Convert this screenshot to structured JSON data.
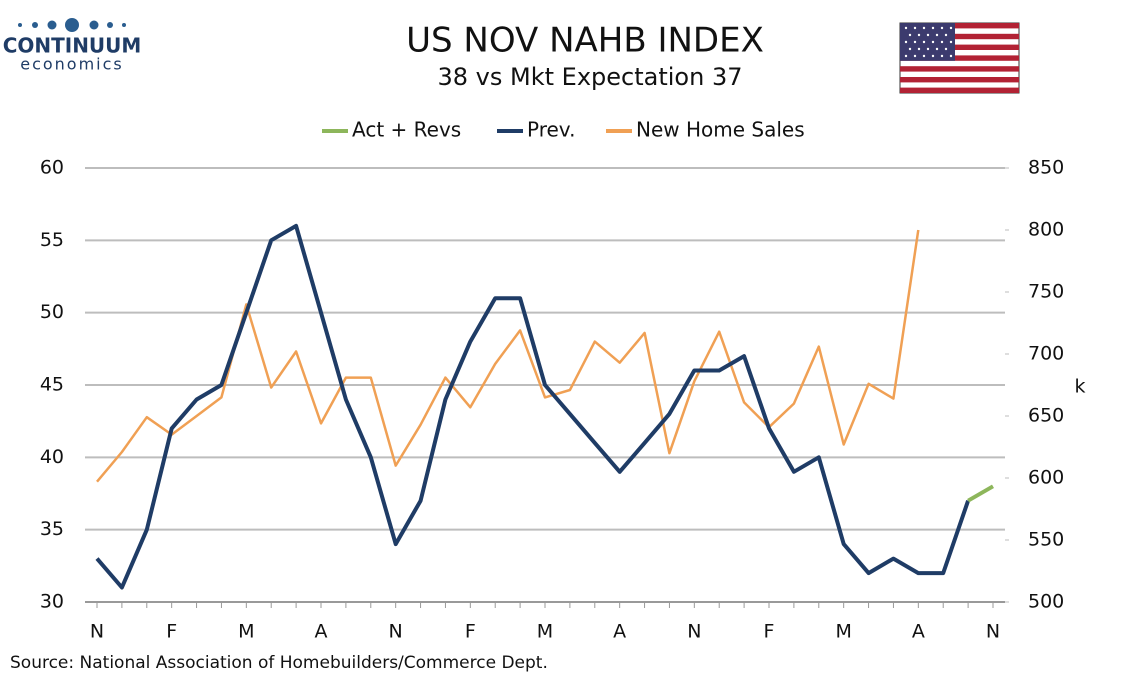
{
  "logo": {
    "name": "CONTINUUM",
    "tagline": "economics"
  },
  "chart_data": {
    "type": "line",
    "title": "US NOV NAHB INDEX",
    "subtitle": "38 vs Mkt Expectation 37",
    "y2_label": "k",
    "source": "Source: National Association of Homebuilders/Commerce Dept.",
    "categories": [
      "N",
      null,
      null,
      "F",
      null,
      null,
      "M",
      null,
      null,
      "A",
      null,
      null,
      "N",
      null,
      null,
      "F",
      null,
      null,
      "M",
      null,
      null,
      "A",
      null,
      null,
      "N",
      null,
      null,
      "F",
      null,
      null,
      "M",
      null,
      null,
      "A",
      null,
      null,
      "N"
    ],
    "ylim": [
      30,
      60
    ],
    "yticks": [
      30,
      35,
      40,
      45,
      50,
      55,
      60
    ],
    "y2lim": [
      500,
      850
    ],
    "y2ticks": [
      500,
      550,
      600,
      650,
      700,
      750,
      800,
      850
    ],
    "grid": true,
    "legend": "top",
    "series": [
      {
        "name": "Act + Revs",
        "color": "#8db65b",
        "width": 4,
        "values": [
          null,
          null,
          null,
          null,
          null,
          null,
          null,
          null,
          null,
          null,
          null,
          null,
          null,
          null,
          null,
          null,
          null,
          null,
          null,
          null,
          null,
          null,
          null,
          null,
          null,
          null,
          null,
          null,
          null,
          null,
          null,
          null,
          null,
          null,
          null,
          37,
          38
        ]
      },
      {
        "name": "Prev.",
        "color": "#1f3c66",
        "width": 4,
        "values": [
          33,
          31,
          35,
          42,
          44,
          45,
          50,
          55,
          56,
          50,
          44,
          40,
          34,
          37,
          44,
          48,
          51,
          51,
          45,
          43,
          41,
          39,
          41,
          43,
          46,
          46,
          47,
          42,
          39,
          40,
          34,
          32,
          33,
          32,
          32,
          37,
          null
        ]
      },
      {
        "name": "New Home Sales",
        "color": "#f0a054",
        "width": 2.5,
        "axis": "y2",
        "values": [
          597,
          621,
          649,
          635,
          650,
          665,
          740,
          673,
          702,
          644,
          681,
          681,
          610,
          643,
          681,
          657,
          692,
          719,
          665,
          671,
          710,
          693,
          717,
          620,
          678,
          718,
          661,
          641,
          660,
          706,
          627,
          676,
          664,
          800,
          null,
          null,
          null
        ]
      }
    ]
  }
}
